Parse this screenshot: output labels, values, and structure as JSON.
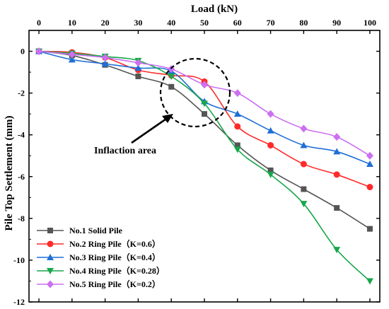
{
  "chart_data": {
    "type": "line",
    "xlabel": "Load (kN)",
    "ylabel": "Pile Top Settlement (mm)",
    "x_axis_position": "top",
    "x": [
      0,
      10,
      20,
      30,
      40,
      50,
      60,
      70,
      80,
      90,
      100
    ],
    "xlim": [
      -3,
      103
    ],
    "ylim": [
      -12,
      1
    ],
    "x_ticks": [
      "0",
      "10",
      "20",
      "30",
      "40",
      "50",
      "60",
      "70",
      "80",
      "90",
      "100"
    ],
    "y_ticks": [
      "0",
      "-2",
      "-4",
      "-6",
      "-8",
      "-10",
      "-12"
    ],
    "y_tick_values": [
      0,
      -2,
      -4,
      -6,
      -8,
      -10,
      -12
    ],
    "grid": false,
    "legend_position": "bottom-left",
    "series": [
      {
        "name": "No.1 Solid Pile",
        "marker": "square",
        "color": "#555555",
        "values": [
          0,
          -0.2,
          -0.65,
          -1.2,
          -1.7,
          -3.0,
          -4.5,
          -5.7,
          -6.6,
          -7.5,
          -8.5
        ]
      },
      {
        "name": "No.2 Ring Pile（K=0.6）",
        "marker": "circle",
        "color": "#ff2a2a",
        "values": [
          0,
          -0.05,
          -0.3,
          -0.9,
          -1.15,
          -1.45,
          -3.6,
          -4.5,
          -5.4,
          -5.9,
          -6.5
        ]
      },
      {
        "name": "No.3 Ring Pile（K=0.4）",
        "marker": "triangle-up",
        "color": "#1f6fd6",
        "values": [
          0,
          -0.4,
          -0.6,
          -0.8,
          -0.95,
          -2.4,
          -3.0,
          -3.8,
          -4.5,
          -4.8,
          -5.4
        ]
      },
      {
        "name": "No.4 Ring Pile（K=0.28）",
        "marker": "triangle-down",
        "color": "#17a74a",
        "values": [
          0,
          -0.1,
          -0.25,
          -0.45,
          -1.2,
          -2.5,
          -4.7,
          -5.9,
          -7.3,
          -9.5,
          -11.0
        ]
      },
      {
        "name": "No.5 Ring Pile（K=0.2）",
        "marker": "diamond",
        "color": "#cc6ff2",
        "values": [
          0,
          -0.15,
          -0.3,
          -0.55,
          -0.85,
          -1.6,
          -2.0,
          -3.0,
          -3.7,
          -4.1,
          -5.0
        ]
      }
    ],
    "annotations": [
      {
        "text": "Inflaction area",
        "circle_center": [
          45,
          -2.0
        ],
        "arrow_to": [
          39,
          -3.1
        ]
      }
    ]
  }
}
